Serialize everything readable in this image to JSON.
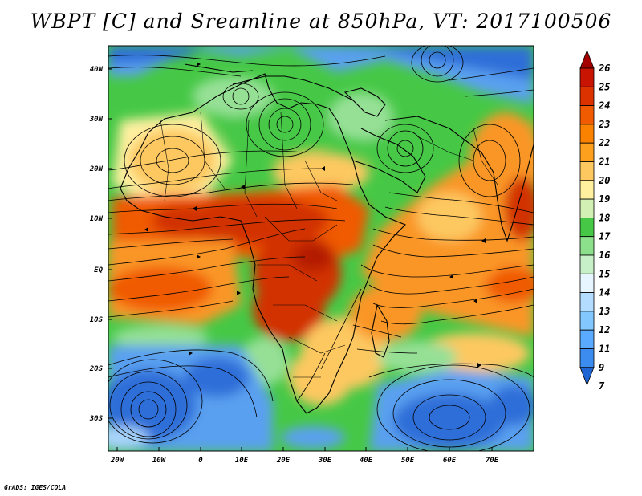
{
  "title": "WBPT [C] and Sreamline at 850hPa, VT: 2017100506",
  "footer": "GrADS: IGES/COLA",
  "lat_labels": [
    "40N",
    "30N",
    "20N",
    "10N",
    "EQ",
    "10S",
    "20S",
    "30S"
  ],
  "lon_labels": [
    "20W",
    "10W",
    "0",
    "10E",
    "20E",
    "30E",
    "40E",
    "50E",
    "60E",
    "70E"
  ],
  "colorbar": {
    "labels": [
      "26",
      "25",
      "24",
      "23",
      "22",
      "21",
      "20",
      "19",
      "18",
      "17",
      "16",
      "15",
      "14",
      "13",
      "12",
      "11",
      "9",
      "7"
    ],
    "colors": [
      "#a50000",
      "#c81400",
      "#dc3200",
      "#f05a00",
      "#fa8200",
      "#fca01e",
      "#fdc860",
      "#fff0a0",
      "#d2f0b4",
      "#46c846",
      "#8ce08c",
      "#c8f0c8",
      "#e6f5ff",
      "#b4dcff",
      "#82c8ff",
      "#5aaaff",
      "#3c8cf0",
      "#1e64d2"
    ]
  },
  "map_colors": {
    "deep_blue": "#2e6ed8",
    "blue": "#5aa0f0",
    "light_blue": "#a8d4fa",
    "green": "#46c846",
    "light_green": "#96e096",
    "pale_yellow": "#fff0a0",
    "yellow": "#fdc860",
    "orange": "#fa9628",
    "red_orange": "#f05a00",
    "red": "#d23200",
    "dark_red": "#b41e00"
  }
}
